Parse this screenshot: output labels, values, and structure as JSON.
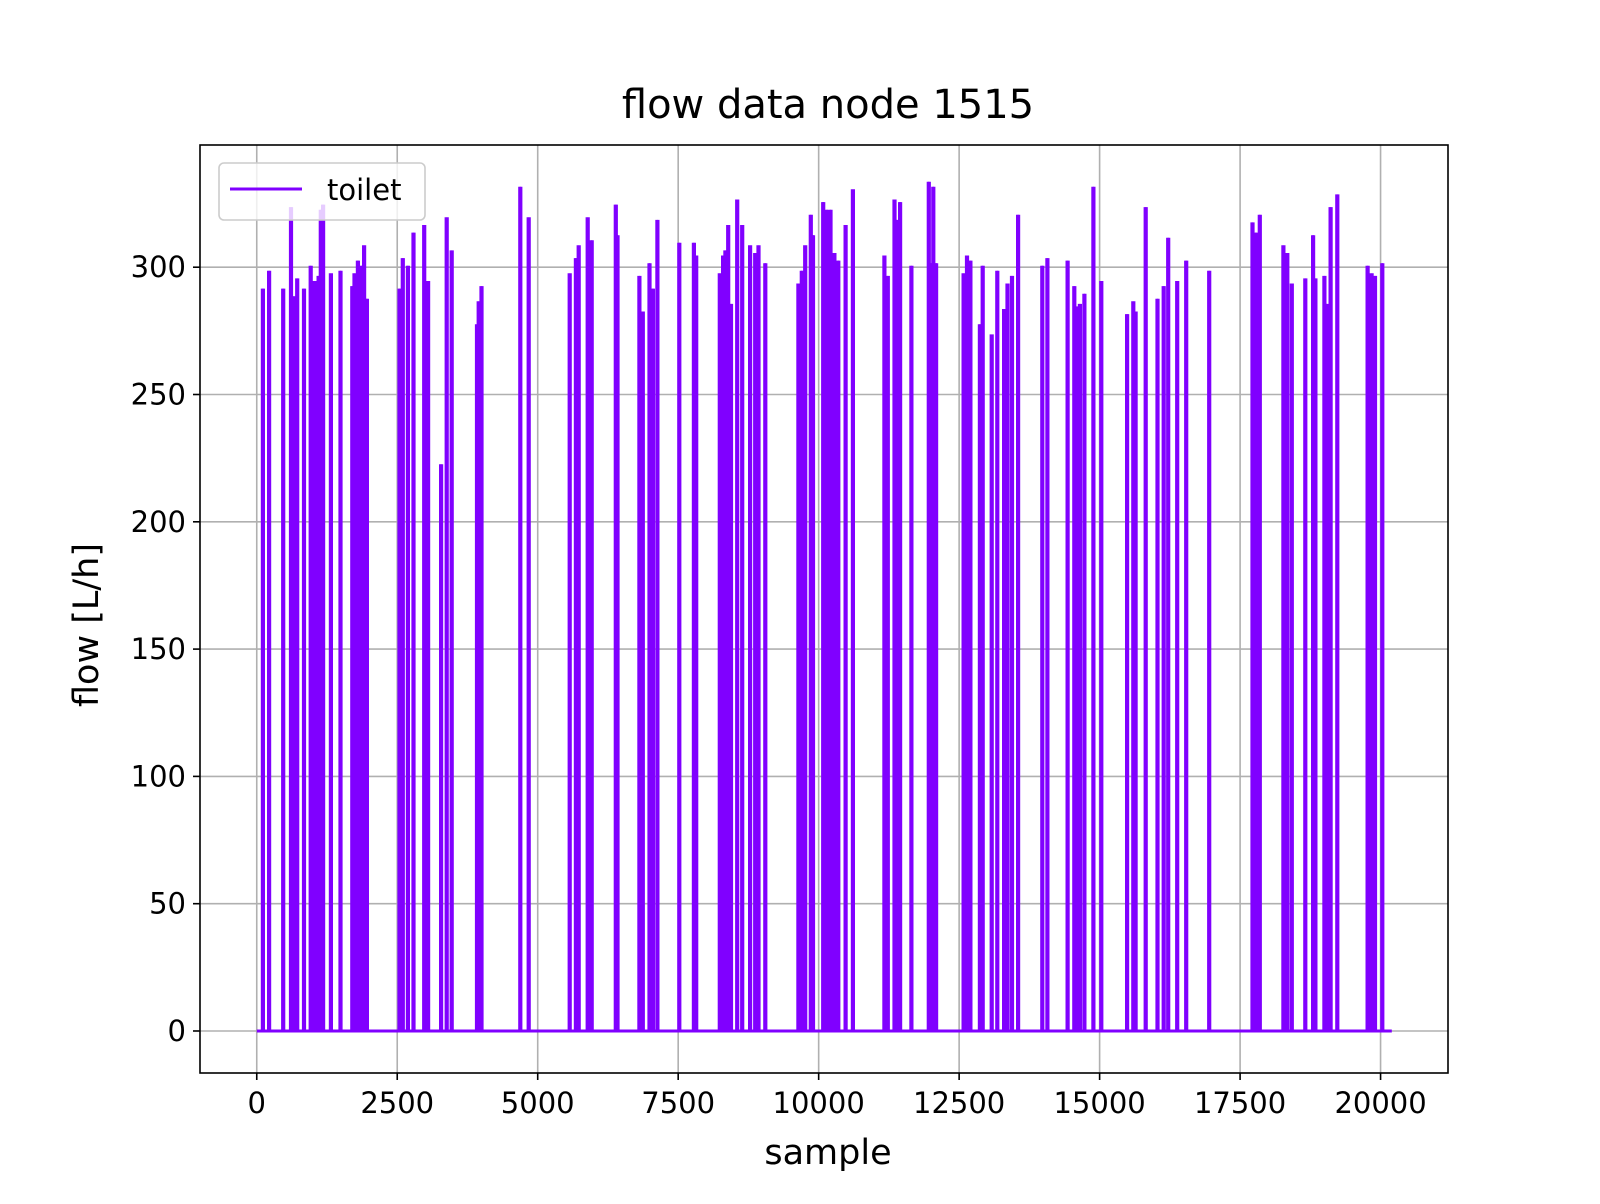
{
  "chart_data": {
    "type": "line",
    "title": "flow data node 1515",
    "xlabel": "sample",
    "ylabel": "flow [L/h]",
    "xlim": [
      -1010,
      21200
    ],
    "ylim": [
      -16.5,
      348
    ],
    "xticks": [
      0,
      2500,
      5000,
      7500,
      10000,
      12500,
      15000,
      17500,
      20000
    ],
    "yticks": [
      0,
      50,
      100,
      150,
      200,
      250,
      300
    ],
    "grid": true,
    "legend_position": "top-left",
    "series": [
      {
        "name": "toilet",
        "color": "#8000ff",
        "x_range": [
          0,
          20200
        ],
        "baseline": 0,
        "pulses": [
          [
            110,
            291
          ],
          [
            220,
            298
          ],
          [
            470,
            291
          ],
          [
            610,
            323
          ],
          [
            660,
            288
          ],
          [
            720,
            295
          ],
          [
            840,
            291
          ],
          [
            960,
            300
          ],
          [
            1030,
            294
          ],
          [
            1100,
            296
          ],
          [
            1140,
            322
          ],
          [
            1180,
            324
          ],
          [
            1320,
            297
          ],
          [
            1490,
            298
          ],
          [
            1700,
            292
          ],
          [
            1740,
            297
          ],
          [
            1800,
            302
          ],
          [
            1860,
            300
          ],
          [
            1910,
            308
          ],
          [
            1960,
            287
          ],
          [
            2540,
            291
          ],
          [
            2600,
            303
          ],
          [
            2690,
            300
          ],
          [
            2790,
            313
          ],
          [
            2980,
            316
          ],
          [
            3050,
            294
          ],
          [
            3280,
            222
          ],
          [
            3380,
            319
          ],
          [
            3470,
            306
          ],
          [
            3920,
            277
          ],
          [
            3950,
            286
          ],
          [
            4000,
            292
          ],
          [
            4690,
            331
          ],
          [
            4840,
            319
          ],
          [
            5570,
            297
          ],
          [
            5680,
            303
          ],
          [
            5730,
            308
          ],
          [
            5890,
            319
          ],
          [
            5960,
            310
          ],
          [
            6390,
            324
          ],
          [
            6420,
            312
          ],
          [
            6810,
            296
          ],
          [
            6870,
            282
          ],
          [
            6990,
            301
          ],
          [
            7050,
            291
          ],
          [
            7130,
            318
          ],
          [
            7520,
            309
          ],
          [
            7780,
            309
          ],
          [
            7820,
            304
          ],
          [
            8240,
            297
          ],
          [
            8300,
            304
          ],
          [
            8340,
            306
          ],
          [
            8390,
            316
          ],
          [
            8440,
            285
          ],
          [
            8550,
            326
          ],
          [
            8640,
            316
          ],
          [
            8780,
            308
          ],
          [
            8870,
            305
          ],
          [
            8930,
            308
          ],
          [
            9050,
            301
          ],
          [
            9640,
            293
          ],
          [
            9700,
            298
          ],
          [
            9760,
            308
          ],
          [
            9860,
            320
          ],
          [
            9900,
            312
          ],
          [
            10080,
            325
          ],
          [
            10150,
            322
          ],
          [
            10210,
            322
          ],
          [
            10280,
            305
          ],
          [
            10350,
            302
          ],
          [
            10480,
            316
          ],
          [
            10610,
            330
          ],
          [
            11170,
            304
          ],
          [
            11230,
            296
          ],
          [
            11350,
            326
          ],
          [
            11390,
            318
          ],
          [
            11450,
            325
          ],
          [
            11650,
            300
          ],
          [
            11960,
            333
          ],
          [
            12000,
            301
          ],
          [
            12040,
            331
          ],
          [
            12090,
            301
          ],
          [
            12580,
            297
          ],
          [
            12640,
            304
          ],
          [
            12700,
            302
          ],
          [
            12870,
            277
          ],
          [
            12920,
            300
          ],
          [
            13080,
            273
          ],
          [
            13180,
            298
          ],
          [
            13300,
            283
          ],
          [
            13360,
            293
          ],
          [
            13440,
            296
          ],
          [
            13550,
            320
          ],
          [
            13980,
            300
          ],
          [
            14070,
            303
          ],
          [
            14430,
            302
          ],
          [
            14550,
            292
          ],
          [
            14620,
            284
          ],
          [
            14650,
            285
          ],
          [
            14730,
            289
          ],
          [
            14890,
            331
          ],
          [
            15030,
            294
          ],
          [
            15490,
            281
          ],
          [
            15600,
            286
          ],
          [
            15640,
            282
          ],
          [
            15820,
            323
          ],
          [
            16030,
            287
          ],
          [
            16140,
            292
          ],
          [
            16220,
            311
          ],
          [
            16380,
            294
          ],
          [
            16540,
            302
          ],
          [
            16950,
            298
          ],
          [
            17720,
            317
          ],
          [
            17780,
            313
          ],
          [
            17850,
            320
          ],
          [
            18270,
            308
          ],
          [
            18340,
            305
          ],
          [
            18420,
            293
          ],
          [
            18660,
            295
          ],
          [
            18800,
            312
          ],
          [
            18840,
            295
          ],
          [
            19000,
            296
          ],
          [
            19040,
            285
          ],
          [
            19110,
            323
          ],
          [
            19230,
            328
          ],
          [
            19770,
            300
          ],
          [
            19840,
            297
          ],
          [
            19900,
            296
          ],
          [
            20030,
            301
          ]
        ]
      }
    ]
  }
}
